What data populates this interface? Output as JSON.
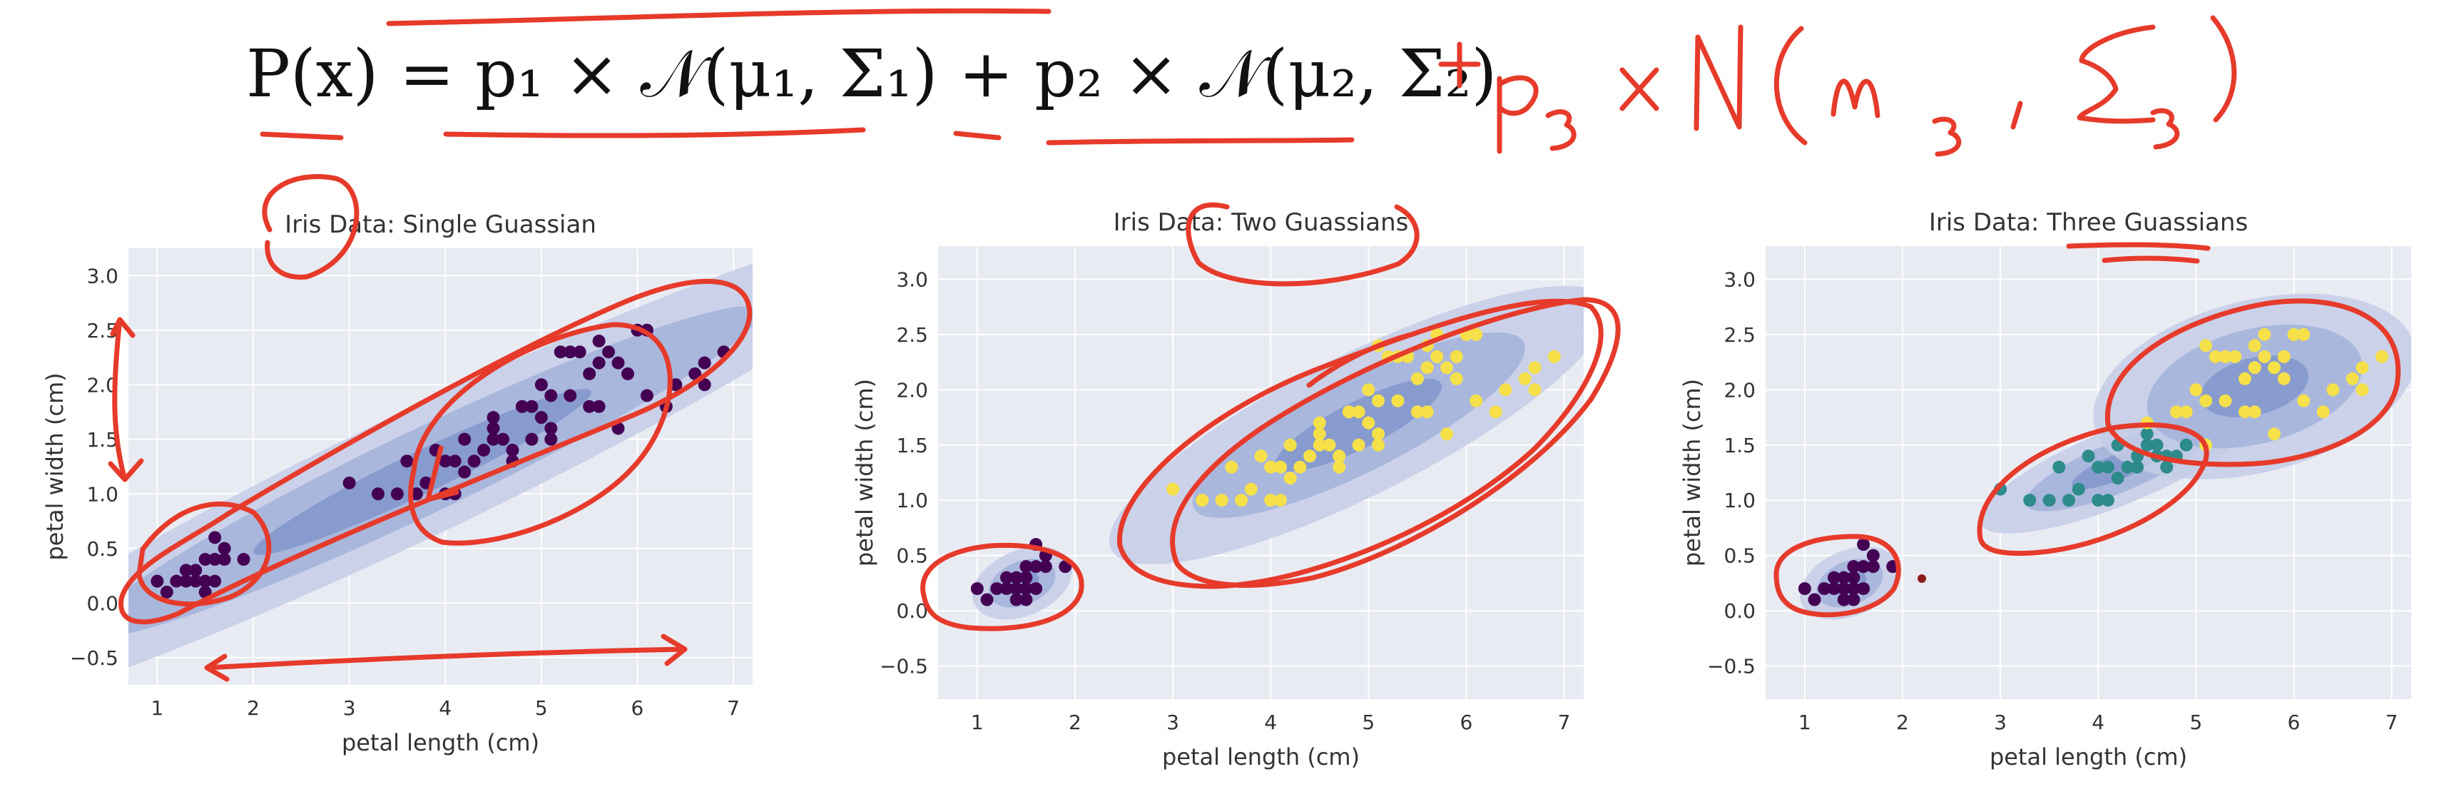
{
  "formula": {
    "typeset": "P(x) = p₁ × 𝒩(μ₁, Σ₁) + p₂ × 𝒩(μ₂, Σ₂)",
    "handwritten": "+ p₃ × N(μ₃, Σ₃)"
  },
  "colors": {
    "background_panel": "#e9ebf3",
    "grid": "#ffffff",
    "ellipse_levels": [
      "#c4cde6",
      "#a3b3da",
      "#8197cb"
    ],
    "setosa": "#440154",
    "versicolor": "#2e8b8b",
    "virginica": "#f5e04a",
    "annotation_ink": "#e63a2a"
  },
  "chart_data": [
    {
      "type": "scatter",
      "title": "Iris Data: Single Guassian",
      "xlabel": "petal length (cm)",
      "ylabel": "petal width (cm)",
      "xlim": [
        0.7,
        7.2
      ],
      "ylim": [
        -0.75,
        3.25
      ],
      "xticks": [
        1,
        2,
        3,
        4,
        5,
        6,
        7
      ],
      "yticks": [
        -0.5,
        0.0,
        0.5,
        1.0,
        1.5,
        2.0,
        2.5,
        3.0
      ],
      "xtick_labels": [
        "1",
        "2",
        "3",
        "4",
        "5",
        "6",
        "7"
      ],
      "ytick_labels": [
        "−0.5",
        "0.0",
        "0.5",
        "1.0",
        "1.5",
        "2.0",
        "2.5",
        "3.0"
      ],
      "grid": true,
      "components": [
        {
          "mean": [
            3.76,
            1.2
          ],
          "sx": 1.76,
          "sy": 0.76,
          "rho": 0.96,
          "levels": [
            1,
            2,
            3
          ]
        }
      ],
      "series": [
        {
          "cluster": "all",
          "color": "#440154",
          "points": [
            [
              1.4,
              0.2
            ],
            [
              1.3,
              0.2
            ],
            [
              1.5,
              0.2
            ],
            [
              1.7,
              0.4
            ],
            [
              1.4,
              0.3
            ],
            [
              1.5,
              0.1
            ],
            [
              1.6,
              0.2
            ],
            [
              1.1,
              0.1
            ],
            [
              1.2,
              0.2
            ],
            [
              1.9,
              0.4
            ],
            [
              1.6,
              0.6
            ],
            [
              1.5,
              0.4
            ],
            [
              1.0,
              0.2
            ],
            [
              1.7,
              0.5
            ],
            [
              1.3,
              0.3
            ],
            [
              1.6,
              0.4
            ],
            [
              4.7,
              1.4
            ],
            [
              4.5,
              1.5
            ],
            [
              4.9,
              1.5
            ],
            [
              4.0,
              1.3
            ],
            [
              4.6,
              1.5
            ],
            [
              3.3,
              1.0
            ],
            [
              3.9,
              1.4
            ],
            [
              3.5,
              1.0
            ],
            [
              4.2,
              1.5
            ],
            [
              4.0,
              1.0
            ],
            [
              4.7,
              1.3
            ],
            [
              3.6,
              1.3
            ],
            [
              4.4,
              1.4
            ],
            [
              4.1,
              1.0
            ],
            [
              4.8,
              1.8
            ],
            [
              4.3,
              1.3
            ],
            [
              5.0,
              1.7
            ],
            [
              3.8,
              1.1
            ],
            [
              3.7,
              1.0
            ],
            [
              5.1,
              1.6
            ],
            [
              4.5,
              1.6
            ],
            [
              3.0,
              1.1
            ],
            [
              4.1,
              1.3
            ],
            [
              4.2,
              1.2
            ],
            [
              6.0,
              2.5
            ],
            [
              5.1,
              1.9
            ],
            [
              5.9,
              2.1
            ],
            [
              5.6,
              1.8
            ],
            [
              5.8,
              2.2
            ],
            [
              6.6,
              2.1
            ],
            [
              4.5,
              1.7
            ],
            [
              6.3,
              1.8
            ],
            [
              6.1,
              2.5
            ],
            [
              5.3,
              1.9
            ],
            [
              5.5,
              2.1
            ],
            [
              5.0,
              2.0
            ],
            [
              6.7,
              2.2
            ],
            [
              6.9,
              2.3
            ],
            [
              5.7,
              2.3
            ],
            [
              4.9,
              1.8
            ],
            [
              5.6,
              2.4
            ],
            [
              5.4,
              2.3
            ],
            [
              6.4,
              2.0
            ],
            [
              6.1,
              1.9
            ],
            [
              5.2,
              2.3
            ],
            [
              4.8,
              1.8
            ],
            [
              5.6,
              2.2
            ],
            [
              5.1,
              1.5
            ],
            [
              5.5,
              1.8
            ],
            [
              6.7,
              2.0
            ],
            [
              5.8,
              1.6
            ],
            [
              5.3,
              2.3
            ]
          ]
        }
      ]
    },
    {
      "type": "scatter",
      "title": "Iris Data: Two Guassians",
      "xlabel": "petal length (cm)",
      "ylabel": "petal width (cm)",
      "xlim": [
        0.6,
        7.2
      ],
      "ylim": [
        -0.8,
        3.3
      ],
      "xticks": [
        1,
        2,
        3,
        4,
        5,
        6,
        7
      ],
      "yticks": [
        -0.5,
        0.0,
        0.5,
        1.0,
        1.5,
        2.0,
        2.5,
        3.0
      ],
      "xtick_labels": [
        "1",
        "2",
        "3",
        "4",
        "5",
        "6",
        "7"
      ],
      "ytick_labels": [
        "−0.5",
        "0.0",
        "0.5",
        "1.0",
        "1.5",
        "2.0",
        "2.5",
        "3.0"
      ],
      "grid": true,
      "components": [
        {
          "mean": [
            1.46,
            0.25
          ],
          "sx": 0.17,
          "sy": 0.11,
          "rho": 0.33,
          "levels": [
            1,
            2,
            3
          ]
        },
        {
          "mean": [
            4.9,
            1.68
          ],
          "sx": 0.85,
          "sy": 0.42,
          "rho": 0.83,
          "levels": [
            1,
            2,
            3
          ]
        }
      ],
      "series": [
        {
          "cluster": "1",
          "color": "#440154",
          "points": [
            [
              1.4,
              0.2
            ],
            [
              1.3,
              0.2
            ],
            [
              1.5,
              0.2
            ],
            [
              1.7,
              0.4
            ],
            [
              1.4,
              0.3
            ],
            [
              1.5,
              0.1
            ],
            [
              1.6,
              0.2
            ],
            [
              1.1,
              0.1
            ],
            [
              1.2,
              0.2
            ],
            [
              1.9,
              0.4
            ],
            [
              1.6,
              0.6
            ],
            [
              1.5,
              0.4
            ],
            [
              1.0,
              0.2
            ],
            [
              1.7,
              0.5
            ],
            [
              1.3,
              0.3
            ],
            [
              1.6,
              0.4
            ],
            [
              1.4,
              0.1
            ],
            [
              1.5,
              0.3
            ]
          ]
        },
        {
          "cluster": "2",
          "color": "#f5e04a",
          "points": [
            [
              4.7,
              1.4
            ],
            [
              4.5,
              1.5
            ],
            [
              4.9,
              1.5
            ],
            [
              4.0,
              1.3
            ],
            [
              4.6,
              1.5
            ],
            [
              3.3,
              1.0
            ],
            [
              3.9,
              1.4
            ],
            [
              3.5,
              1.0
            ],
            [
              4.2,
              1.5
            ],
            [
              4.0,
              1.0
            ],
            [
              4.7,
              1.3
            ],
            [
              3.6,
              1.3
            ],
            [
              4.4,
              1.4
            ],
            [
              4.1,
              1.0
            ],
            [
              4.8,
              1.8
            ],
            [
              4.3,
              1.3
            ],
            [
              5.0,
              1.7
            ],
            [
              3.8,
              1.1
            ],
            [
              3.7,
              1.0
            ],
            [
              5.1,
              1.6
            ],
            [
              4.5,
              1.6
            ],
            [
              3.0,
              1.1
            ],
            [
              4.1,
              1.3
            ],
            [
              4.2,
              1.2
            ],
            [
              6.0,
              2.5
            ],
            [
              5.1,
              1.9
            ],
            [
              5.9,
              2.1
            ],
            [
              5.6,
              1.8
            ],
            [
              5.8,
              2.2
            ],
            [
              6.6,
              2.1
            ],
            [
              4.5,
              1.7
            ],
            [
              6.3,
              1.8
            ],
            [
              6.1,
              2.5
            ],
            [
              5.3,
              1.9
            ],
            [
              5.5,
              2.1
            ],
            [
              5.0,
              2.0
            ],
            [
              6.7,
              2.2
            ],
            [
              6.9,
              2.3
            ],
            [
              5.7,
              2.3
            ],
            [
              4.9,
              1.8
            ],
            [
              5.6,
              2.4
            ],
            [
              5.4,
              2.3
            ],
            [
              6.4,
              2.0
            ],
            [
              6.1,
              1.9
            ],
            [
              5.2,
              2.3
            ],
            [
              4.8,
              1.8
            ],
            [
              5.6,
              2.2
            ],
            [
              5.1,
              1.5
            ],
            [
              5.5,
              1.8
            ],
            [
              6.7,
              2.0
            ],
            [
              5.8,
              1.6
            ],
            [
              5.3,
              2.3
            ],
            [
              5.7,
              2.5
            ],
            [
              5.9,
              2.3
            ],
            [
              5.1,
              2.4
            ]
          ]
        }
      ]
    },
    {
      "type": "scatter",
      "title": "Iris Data: Three Guassians",
      "xlabel": "petal length (cm)",
      "ylabel": "petal width (cm)",
      "xlim": [
        0.6,
        7.2
      ],
      "ylim": [
        -0.8,
        3.3
      ],
      "xticks": [
        1,
        2,
        3,
        4,
        5,
        6,
        7
      ],
      "yticks": [
        -0.5,
        0.0,
        0.5,
        1.0,
        1.5,
        2.0,
        2.5,
        3.0
      ],
      "xtick_labels": [
        "1",
        "2",
        "3",
        "4",
        "5",
        "6",
        "7"
      ],
      "ytick_labels": [
        "−0.5",
        "0.0",
        "0.5",
        "1.0",
        "1.5",
        "2.0",
        "2.5",
        "3.0"
      ],
      "grid": true,
      "components": [
        {
          "mean": [
            1.46,
            0.25
          ],
          "sx": 0.17,
          "sy": 0.11,
          "rho": 0.33,
          "levels": [
            1,
            2,
            3
          ]
        },
        {
          "mean": [
            4.2,
            1.3
          ],
          "sx": 0.47,
          "sy": 0.2,
          "rho": 0.79,
          "levels": [
            1,
            2,
            3
          ]
        },
        {
          "mean": [
            5.6,
            2.03
          ],
          "sx": 0.55,
          "sy": 0.28,
          "rho": 0.32,
          "levels": [
            1,
            2,
            3
          ]
        }
      ],
      "series": [
        {
          "cluster": "1",
          "color": "#440154",
          "points": [
            [
              1.4,
              0.2
            ],
            [
              1.3,
              0.2
            ],
            [
              1.5,
              0.2
            ],
            [
              1.7,
              0.4
            ],
            [
              1.4,
              0.3
            ],
            [
              1.5,
              0.1
            ],
            [
              1.6,
              0.2
            ],
            [
              1.1,
              0.1
            ],
            [
              1.2,
              0.2
            ],
            [
              1.9,
              0.4
            ],
            [
              1.6,
              0.6
            ],
            [
              1.5,
              0.4
            ],
            [
              1.0,
              0.2
            ],
            [
              1.7,
              0.5
            ],
            [
              1.3,
              0.3
            ],
            [
              1.6,
              0.4
            ],
            [
              1.4,
              0.1
            ],
            [
              1.5,
              0.3
            ]
          ]
        },
        {
          "cluster": "2",
          "color": "#2e8b8b",
          "points": [
            [
              4.7,
              1.4
            ],
            [
              4.5,
              1.5
            ],
            [
              4.9,
              1.5
            ],
            [
              4.0,
              1.3
            ],
            [
              4.6,
              1.5
            ],
            [
              3.3,
              1.0
            ],
            [
              3.9,
              1.4
            ],
            [
              3.5,
              1.0
            ],
            [
              4.2,
              1.5
            ],
            [
              4.0,
              1.0
            ],
            [
              4.7,
              1.3
            ],
            [
              3.6,
              1.3
            ],
            [
              4.4,
              1.4
            ],
            [
              4.1,
              1.0
            ],
            [
              4.3,
              1.3
            ],
            [
              3.8,
              1.1
            ],
            [
              3.7,
              1.0
            ],
            [
              4.5,
              1.6
            ],
            [
              3.0,
              1.1
            ],
            [
              4.1,
              1.3
            ],
            [
              4.2,
              1.2
            ],
            [
              4.6,
              1.4
            ],
            [
              4.4,
              1.3
            ],
            [
              4.8,
              1.4
            ]
          ]
        },
        {
          "cluster": "3",
          "color": "#f5e04a",
          "points": [
            [
              6.0,
              2.5
            ],
            [
              5.1,
              1.9
            ],
            [
              5.9,
              2.1
            ],
            [
              5.6,
              1.8
            ],
            [
              5.8,
              2.2
            ],
            [
              6.6,
              2.1
            ],
            [
              4.5,
              1.7
            ],
            [
              6.3,
              1.8
            ],
            [
              6.1,
              2.5
            ],
            [
              5.3,
              1.9
            ],
            [
              5.5,
              2.1
            ],
            [
              5.0,
              2.0
            ],
            [
              6.7,
              2.2
            ],
            [
              6.9,
              2.3
            ],
            [
              5.7,
              2.3
            ],
            [
              4.9,
              1.8
            ],
            [
              5.6,
              2.4
            ],
            [
              5.4,
              2.3
            ],
            [
              6.4,
              2.0
            ],
            [
              6.1,
              1.9
            ],
            [
              5.2,
              2.3
            ],
            [
              4.8,
              1.8
            ],
            [
              5.6,
              2.2
            ],
            [
              5.1,
              1.5
            ],
            [
              5.5,
              1.8
            ],
            [
              6.7,
              2.0
            ],
            [
              5.8,
              1.6
            ],
            [
              5.3,
              2.3
            ],
            [
              5.7,
              2.5
            ],
            [
              5.9,
              2.3
            ],
            [
              5.1,
              2.4
            ]
          ]
        }
      ]
    }
  ]
}
